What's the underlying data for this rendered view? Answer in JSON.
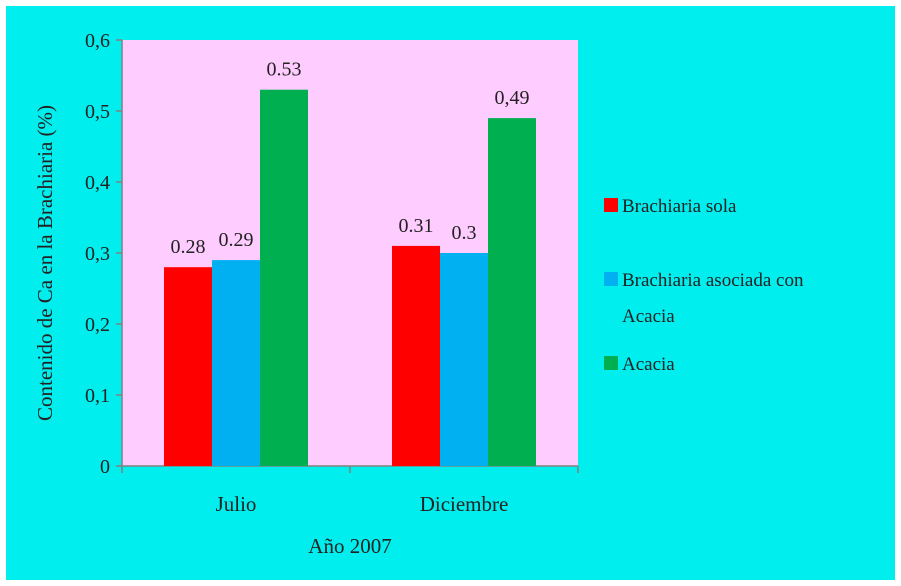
{
  "chart_data": {
    "type": "bar",
    "categories": [
      "Julio",
      "Diciembre"
    ],
    "series": [
      {
        "name": "Brachiaria sola",
        "values": [
          0.28,
          0.31
        ],
        "labels": [
          "0.28",
          "0.31"
        ],
        "color": "#ff0000"
      },
      {
        "name": "Brachiaria asociada con Acacia",
        "values": [
          0.29,
          0.3
        ],
        "labels": [
          "0.29",
          "0.3"
        ],
        "color": "#00b0f0"
      },
      {
        "name": "Acacia",
        "values": [
          0.53,
          0.49
        ],
        "labels": [
          "0.53",
          "0,49"
        ],
        "color": "#00b050"
      }
    ],
    "legend_lines": [
      [
        "Brachiaria sola"
      ],
      [
        "Brachiaria asociada con",
        "Acacia"
      ],
      [
        "Acacia"
      ]
    ],
    "ylim": [
      0,
      0.6
    ],
    "yticks": [
      0,
      0.1,
      0.2,
      0.3,
      0.4,
      0.5,
      0.6
    ],
    "ytick_labels": [
      "0",
      "0,1",
      "0,2",
      "0,3",
      "0,4",
      "0,5",
      "0,6"
    ],
    "ylabel": "Contenido de Ca en la Brachiaria (%)",
    "xlabel": "Año 2007",
    "grid": false,
    "legend_position": "right",
    "colors": {
      "chart_bg": "#00eeee",
      "plot_bg": "#ffccff",
      "axis": "#808080"
    }
  }
}
